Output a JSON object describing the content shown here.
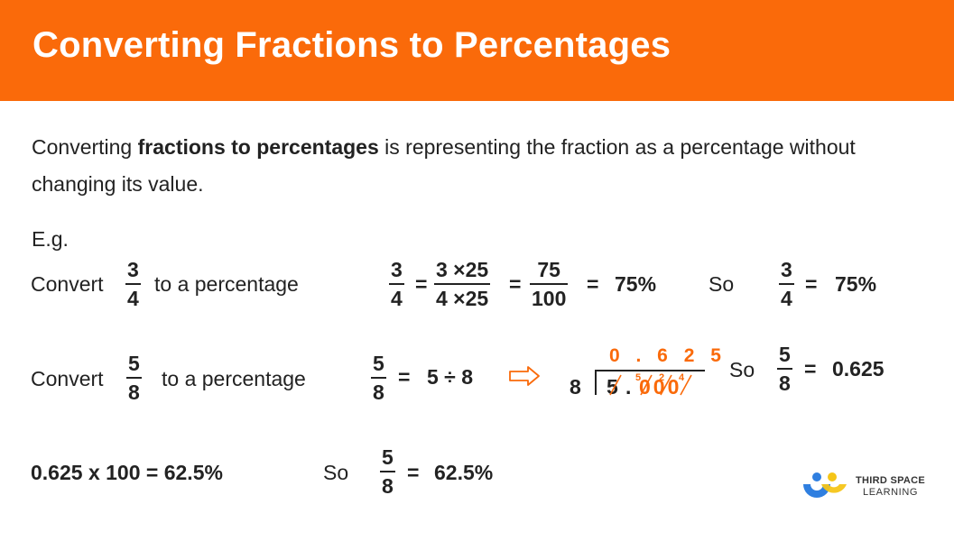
{
  "header": {
    "title": "Converting Fractions to Percentages"
  },
  "intro": {
    "before": "Converting ",
    "bold": "fractions to percentages",
    "after": " is representing the fraction as a percentage without changing its value."
  },
  "eg": "E.g.",
  "example1": {
    "convert": "Convert",
    "to_percentage": "to a percentage",
    "fraction": {
      "num": "3",
      "den": "4"
    },
    "eq": "=",
    "step1": {
      "num": "3 ×25",
      "den": "4 ×25"
    },
    "step2": {
      "num": "75",
      "den": "100"
    },
    "result": "75%",
    "so": "So",
    "final_fraction": {
      "num": "3",
      "den": "4"
    },
    "final_result": "75%"
  },
  "example2": {
    "convert": "Convert",
    "to_percentage": "to a percentage",
    "fraction": {
      "num": "5",
      "den": "8"
    },
    "eq": "=",
    "division": "5 ÷ 8",
    "long_division": {
      "quotient": "0 . 6 2 5",
      "divisor": "8",
      "dividend_whole": "5",
      "dot": ".",
      "zeros": "000",
      "carries": [
        "5",
        "2",
        "4"
      ]
    },
    "so": "So",
    "final_fraction": {
      "num": "5",
      "den": "8"
    },
    "final_result": "0.625"
  },
  "example3": {
    "calc": "0.625 x 100 =  62.5%",
    "so": "So",
    "fraction": {
      "num": "5",
      "den": "8"
    },
    "eq": "=",
    "result": "62.5%"
  },
  "logo": {
    "line1": "THIRD SPACE",
    "line2": "LEARNING"
  },
  "colors": {
    "accent": "#fa6a0a",
    "logo_blue": "#2f7fe0",
    "logo_yellow": "#f5c518"
  },
  "icons": {
    "arrow": "right-arrow-outline-icon"
  }
}
